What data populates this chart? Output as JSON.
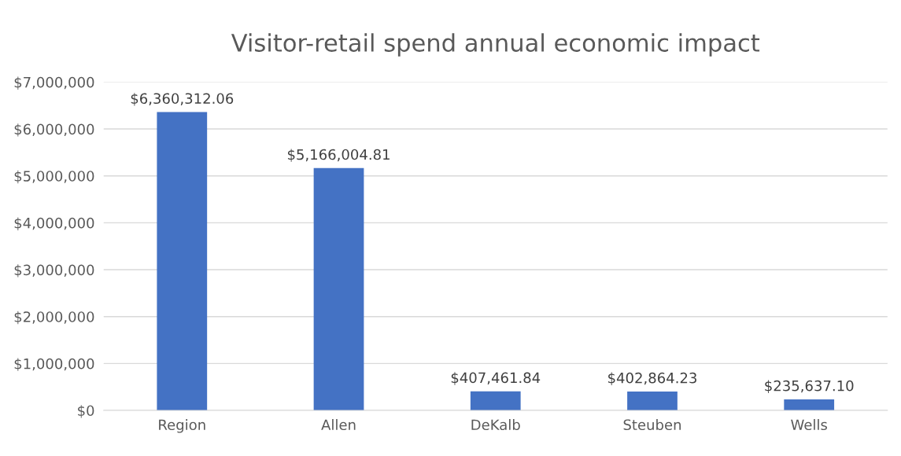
{
  "chart_data": {
    "type": "bar",
    "title": "Visitor-retail spend annual economic impact",
    "categories": [
      "Region",
      "Allen",
      "DeKalb",
      "Steuben",
      "Wells"
    ],
    "values": [
      6360312.06,
      5166004.81,
      407461.84,
      402864.23,
      235637.1
    ],
    "color": "#4472c4",
    "value_labels": [
      "$6,360,312.06",
      "$5,166,004.81",
      "$407,461.84",
      "$402,864.23",
      "$235,637.10"
    ],
    "ylim": [
      0,
      7000000
    ],
    "yticks": [
      {
        "value": 0,
        "label": "$0"
      },
      {
        "value": 1000000,
        "label": "$1,000,000"
      },
      {
        "value": 2000000,
        "label": "$2,000,000"
      },
      {
        "value": 3000000,
        "label": "$3,000,000"
      },
      {
        "value": 4000000,
        "label": "$4,000,000"
      },
      {
        "value": 5000000,
        "label": "$5,000,000"
      },
      {
        "value": 6000000,
        "label": "$6,000,000"
      },
      {
        "value": 7000000,
        "label": "$7,000,000"
      }
    ],
    "grid": "y"
  }
}
